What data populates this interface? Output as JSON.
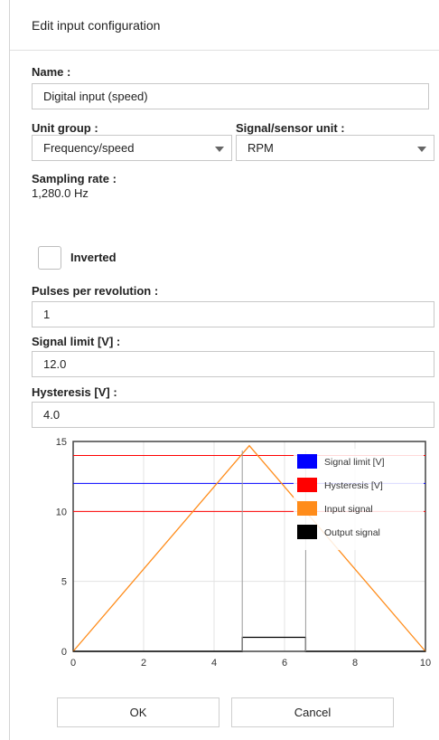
{
  "dialog": {
    "title": "Edit input configuration"
  },
  "form": {
    "name_label": "Name :",
    "name_value": "Digital input (speed)",
    "unit_group_label": "Unit group :",
    "unit_group_value": "Frequency/speed",
    "signal_unit_label": "Signal/sensor unit :",
    "signal_unit_value": "RPM",
    "sampling_rate_label": "Sampling rate :",
    "sampling_rate_value": "1,280.0 Hz",
    "inverted_label": "Inverted",
    "inverted_checked": false,
    "pulses_label": "Pulses per revolution :",
    "pulses_value": "1",
    "signal_limit_label": "Signal limit [V] :",
    "signal_limit_value": "12.0",
    "hysteresis_label": "Hysteresis [V] :",
    "hysteresis_value": "4.0"
  },
  "chart_data": {
    "type": "line",
    "xlim": [
      0,
      10
    ],
    "ylim": [
      0,
      15
    ],
    "x_ticks": [
      "0",
      "2",
      "4",
      "6",
      "8",
      "10"
    ],
    "y_ticks": [
      "0",
      "5",
      "10",
      "15"
    ],
    "grid": true,
    "legend_position": "top-right",
    "series": [
      {
        "name": "Signal limit [V]",
        "color": "#0000ff",
        "kind": "hline",
        "y": 12
      },
      {
        "name": "Hysteresis [V]",
        "color": "#ff0000",
        "kind": "hlines",
        "y": [
          10,
          14
        ]
      },
      {
        "name": "Input signal",
        "color": "#ff8c1a",
        "kind": "line",
        "x": [
          0,
          5,
          10
        ],
        "y": [
          0,
          14.7,
          0
        ]
      },
      {
        "name": "Output signal",
        "color": "#000000",
        "kind": "step",
        "x": [
          0,
          4.8,
          4.8,
          6.6,
          6.6,
          10
        ],
        "y": [
          0,
          0,
          1,
          1,
          0,
          0
        ]
      }
    ]
  },
  "buttons": {
    "ok": "OK",
    "cancel": "Cancel"
  }
}
